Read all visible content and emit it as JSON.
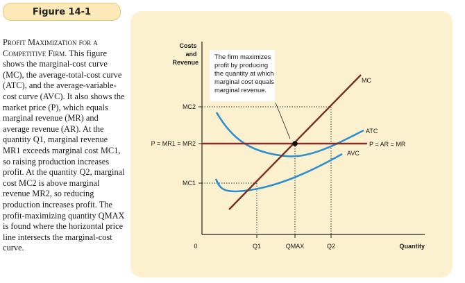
{
  "figure_label": "Figure 14-1",
  "caption": {
    "title": "Profit Maximization for a Competitive Firm.",
    "body": "This figure shows the marginal-cost curve (MC), the average-total-cost curve (ATC), and the average-variable-cost curve (AVC). It also shows the market price (P), which equals marginal revenue (MR) and average revenue (AR). At the quantity Q1, marginal revenue MR1 exceeds marginal cost MC1, so raising production increases profit. At the quantity Q2, marginal cost MC2 is above marginal revenue MR2, so reducing production increases profit. The profit-maximizing quantity QMAX is found where the horizontal price line intersects the marginal-cost curve."
  },
  "diagram": {
    "y_axis_title": [
      "Costs",
      "and",
      "Revenue"
    ],
    "x_axis_title": "Quantity",
    "origin_label": "0",
    "y_labels": {
      "mc2": "MC2",
      "p": "P = MR1 = MR2",
      "mc1": "MC1"
    },
    "x_labels": {
      "q1": "Q1",
      "qmax": "QMAX",
      "q2": "Q2"
    },
    "curve_labels": {
      "mc": "MC",
      "atc": "ATC",
      "avc": "AVC",
      "price": "P = AR = MR"
    },
    "annotation": [
      "The firm maximizes",
      "profit by producing",
      "the quantity at which",
      "marginal cost equals",
      "marginal revenue."
    ],
    "colors": {
      "mc": "#7b2a1e",
      "price": "#8b2a2a",
      "atc": "#2b8fd0",
      "avc": "#2b8fd0",
      "panel": "#fcf1ce"
    }
  }
}
